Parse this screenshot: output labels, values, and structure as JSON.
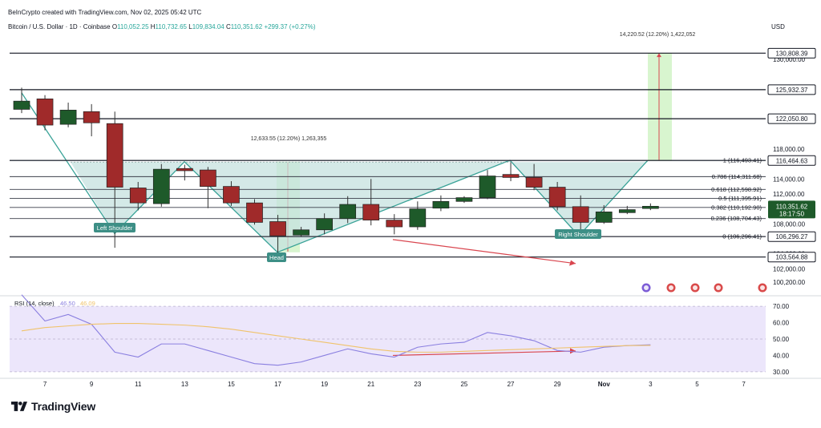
{
  "header": {
    "credit": "BeInCrypto created with TradingView.com, Nov 02, 2025 05:42 UTC",
    "symbol": "Bitcoin / U.S. Dollar · 1D · Coinbase",
    "open_label": "O",
    "open": "110,052.25",
    "high_label": "H",
    "high": "110,732.65",
    "low_label": "L",
    "low": "109,834.04",
    "close_label": "C",
    "close": "110,351.62",
    "change": "+299.37 (+0.27%)",
    "currency": "USD"
  },
  "brand": {
    "name": "TradingView"
  },
  "colors": {
    "up": "#1e5a2a",
    "down": "#a02a2a",
    "neckline_fill": "#c5e2df",
    "pattern_line": "#3aa398",
    "rsi_line": "#8a7fe0",
    "rsi_ma": "#f0c36b",
    "rsi_band": "#ece6fb",
    "measure_fill": "#d8f5cf",
    "arrow": "#d9464f",
    "level_label_bg": "#131722"
  },
  "chart_data": [
    {
      "type": "candlestick",
      "title": "Bitcoin / U.S. Dollar · 1D · Coinbase",
      "ylabel": "USD",
      "ylim": [
        98500,
        133200
      ],
      "x_ticks": [
        "7",
        "9",
        "11",
        "13",
        "15",
        "17",
        "19",
        "21",
        "23",
        "25",
        "27",
        "29",
        "Nov",
        "3",
        "5",
        "7"
      ],
      "y_ticks": [
        "130,000.00",
        "118,000.00",
        "114,000.00",
        "112,000.00",
        "108,000.00",
        "104,000.00",
        "102,000.00",
        "100,200.00"
      ],
      "candles": [
        {
          "date": "Oct 6",
          "o": 123300,
          "h": 126200,
          "l": 122800,
          "c": 124400
        },
        {
          "date": "Oct 7",
          "o": 124700,
          "h": 125200,
          "l": 120500,
          "c": 121200
        },
        {
          "date": "Oct 8",
          "o": 121300,
          "h": 124200,
          "l": 120900,
          "c": 123200
        },
        {
          "date": "Oct 9",
          "o": 123000,
          "h": 124000,
          "l": 119700,
          "c": 121500
        },
        {
          "date": "Oct 10",
          "o": 121400,
          "h": 123000,
          "l": 104800,
          "c": 112900
        },
        {
          "date": "Oct 11",
          "o": 112800,
          "h": 113600,
          "l": 109800,
          "c": 110800
        },
        {
          "date": "Oct 12",
          "o": 110700,
          "h": 116000,
          "l": 110300,
          "c": 115300
        },
        {
          "date": "Oct 13",
          "o": 115400,
          "h": 115900,
          "l": 113800,
          "c": 115100
        },
        {
          "date": "Oct 14",
          "o": 115200,
          "h": 115600,
          "l": 110100,
          "c": 113000
        },
        {
          "date": "Oct 15",
          "o": 113000,
          "h": 113700,
          "l": 110400,
          "c": 110800
        },
        {
          "date": "Oct 16",
          "o": 110800,
          "h": 111300,
          "l": 107900,
          "c": 108200
        },
        {
          "date": "Oct 17",
          "o": 108300,
          "h": 109200,
          "l": 104100,
          "c": 106400
        },
        {
          "date": "Oct 18",
          "o": 106500,
          "h": 107600,
          "l": 106300,
          "c": 107200
        },
        {
          "date": "Oct 19",
          "o": 107200,
          "h": 109400,
          "l": 106600,
          "c": 108700
        },
        {
          "date": "Oct 20",
          "o": 108700,
          "h": 111700,
          "l": 108100,
          "c": 110600
        },
        {
          "date": "Oct 21",
          "o": 110600,
          "h": 114000,
          "l": 107800,
          "c": 108500
        },
        {
          "date": "Oct 22",
          "o": 108500,
          "h": 109300,
          "l": 106600,
          "c": 107600
        },
        {
          "date": "Oct 23",
          "o": 107600,
          "h": 111000,
          "l": 107200,
          "c": 110000
        },
        {
          "date": "Oct 24",
          "o": 110100,
          "h": 111800,
          "l": 109700,
          "c": 111000
        },
        {
          "date": "Oct 25",
          "o": 111000,
          "h": 111700,
          "l": 110800,
          "c": 111500
        },
        {
          "date": "Oct 26",
          "o": 111500,
          "h": 115200,
          "l": 111300,
          "c": 114400
        },
        {
          "date": "Oct 27",
          "o": 114600,
          "h": 116200,
          "l": 113700,
          "c": 114200
        },
        {
          "date": "Oct 28",
          "o": 114200,
          "h": 116000,
          "l": 112500,
          "c": 112900
        },
        {
          "date": "Oct 29",
          "o": 112900,
          "h": 113600,
          "l": 109800,
          "c": 110300
        },
        {
          "date": "Oct 30",
          "o": 110300,
          "h": 111800,
          "l": 106300,
          "c": 108200
        },
        {
          "date": "Oct 31",
          "o": 108200,
          "h": 110500,
          "l": 108000,
          "c": 109600
        },
        {
          "date": "Nov 1",
          "o": 109500,
          "h": 110400,
          "l": 109300,
          "c": 109900
        },
        {
          "date": "Nov 2",
          "o": 110052.25,
          "h": 110732.65,
          "l": 109834.04,
          "c": 110351.62
        }
      ],
      "horizontal_levels": [
        {
          "price": 130808.39,
          "label": "130,808.39"
        },
        {
          "price": 125932.37,
          "label": "125,932.37"
        },
        {
          "price": 122050.8,
          "label": "122,050.80"
        },
        {
          "price": 116464.63,
          "label": "116,464.63"
        },
        {
          "price": 106296.27,
          "label": "106,296.27"
        },
        {
          "price": 103564.88,
          "label": "103,564.88"
        }
      ],
      "fibonacci_levels": [
        {
          "ratio": "1",
          "price": "116,493.41"
        },
        {
          "ratio": "0.786",
          "price": "114,311.68"
        },
        {
          "ratio": "0.618",
          "price": "112,598.92"
        },
        {
          "ratio": "0.5",
          "price": "111,395.91"
        },
        {
          "ratio": "0.382",
          "price": "110,192.90"
        },
        {
          "ratio": "0.236",
          "price": "108,704.43"
        },
        {
          "ratio": "0",
          "price": "106,296.41"
        }
      ],
      "current_price_label": {
        "price": "110,351.62",
        "countdown": "18:17:50"
      },
      "pattern_labels": [
        "Left Shoulder",
        "Head",
        "Right Shoulder"
      ],
      "measure_labels": {
        "head": "12,633.55 (12.20%) 1,263,355",
        "target": "14,220.52 (12.20%) 1,422,052"
      }
    },
    {
      "type": "line",
      "title": "RSI (14, close)",
      "series": [
        {
          "name": "RSI",
          "value_label": "46.50",
          "values": [
            77,
            61,
            65,
            59,
            42,
            39,
            47,
            47,
            43,
            39,
            35,
            34,
            36,
            40,
            44,
            41,
            39,
            45,
            47,
            48,
            54,
            52,
            49,
            43,
            42,
            45,
            46,
            46.5
          ]
        },
        {
          "name": "RSI MA",
          "value_label": "46.09",
          "values": [
            55,
            57,
            58,
            59,
            59.5,
            59.5,
            59,
            58.5,
            57.5,
            56,
            54,
            52,
            50,
            48,
            46,
            44,
            42.5,
            42,
            42,
            42.5,
            43,
            43.5,
            44,
            44.5,
            45,
            45.5,
            46,
            46.1
          ]
        }
      ],
      "ylim": [
        28,
        72
      ],
      "y_ticks": [
        "70.00",
        "60.00",
        "50.00",
        "40.00",
        "30.00"
      ]
    }
  ]
}
